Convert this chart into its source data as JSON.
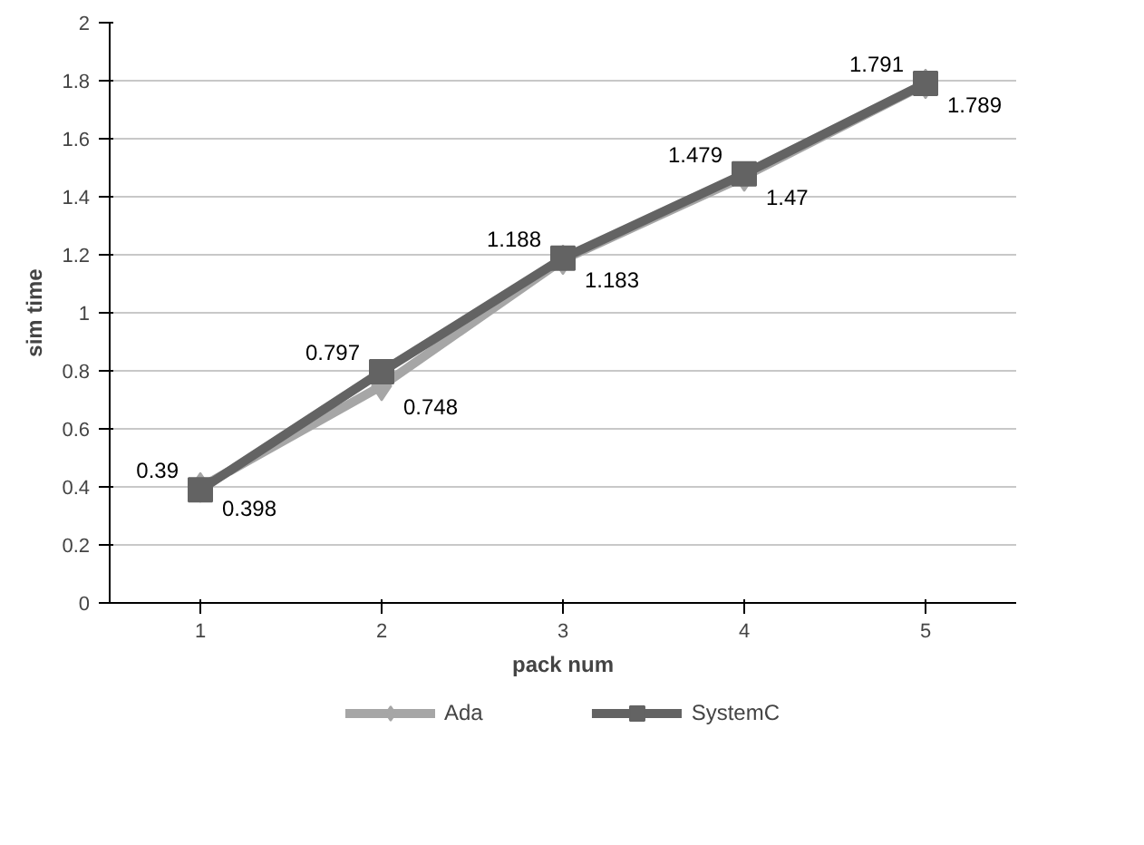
{
  "chart_data": {
    "type": "line",
    "xlabel": "pack num",
    "ylabel": "sim time",
    "categories": [
      "1",
      "2",
      "3",
      "4",
      "5"
    ],
    "series": [
      {
        "name": "Ada",
        "color": "#a6a6a6",
        "marker": "diamond",
        "values": [
          0.398,
          0.748,
          1.183,
          1.47,
          1.789
        ]
      },
      {
        "name": "SystemC",
        "color": "#636363",
        "marker": "square",
        "values": [
          0.39,
          0.797,
          1.188,
          1.479,
          1.791
        ]
      }
    ],
    "data_labels": true,
    "ylim": [
      0,
      2
    ],
    "yticks": [
      0,
      0.2,
      0.4,
      0.6,
      0.8,
      1,
      1.2,
      1.4,
      1.6,
      1.8,
      2
    ],
    "grid": "y",
    "legend": "bottom"
  }
}
